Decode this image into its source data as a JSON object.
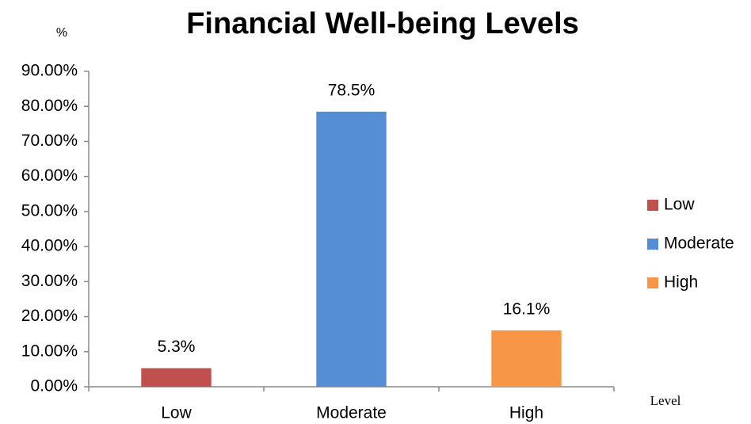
{
  "chart_data": {
    "type": "bar",
    "title": "Financial Well-being Levels",
    "y_label": "%",
    "x_label": "Level",
    "categories": [
      "Low",
      "Moderate",
      "High"
    ],
    "values": [
      5.3,
      78.5,
      16.1
    ],
    "value_labels": [
      "5.3%",
      "78.5%",
      "16.1%"
    ],
    "colors": [
      "#c0504d",
      "#558ed5",
      "#f79646"
    ],
    "ylim": [
      0,
      90
    ],
    "yticks": [
      {
        "value": 0,
        "label": "0.00%"
      },
      {
        "value": 10,
        "label": "10.00%"
      },
      {
        "value": 20,
        "label": "20.00%"
      },
      {
        "value": 30,
        "label": "30.00%"
      },
      {
        "value": 40,
        "label": "40.00%"
      },
      {
        "value": 50,
        "label": "50.00%"
      },
      {
        "value": 60,
        "label": "60.00%"
      },
      {
        "value": 70,
        "label": "70.00%"
      },
      {
        "value": 80,
        "label": "80.00%"
      },
      {
        "value": 90,
        "label": "90.00%"
      }
    ],
    "grid": false,
    "legend": "right"
  }
}
